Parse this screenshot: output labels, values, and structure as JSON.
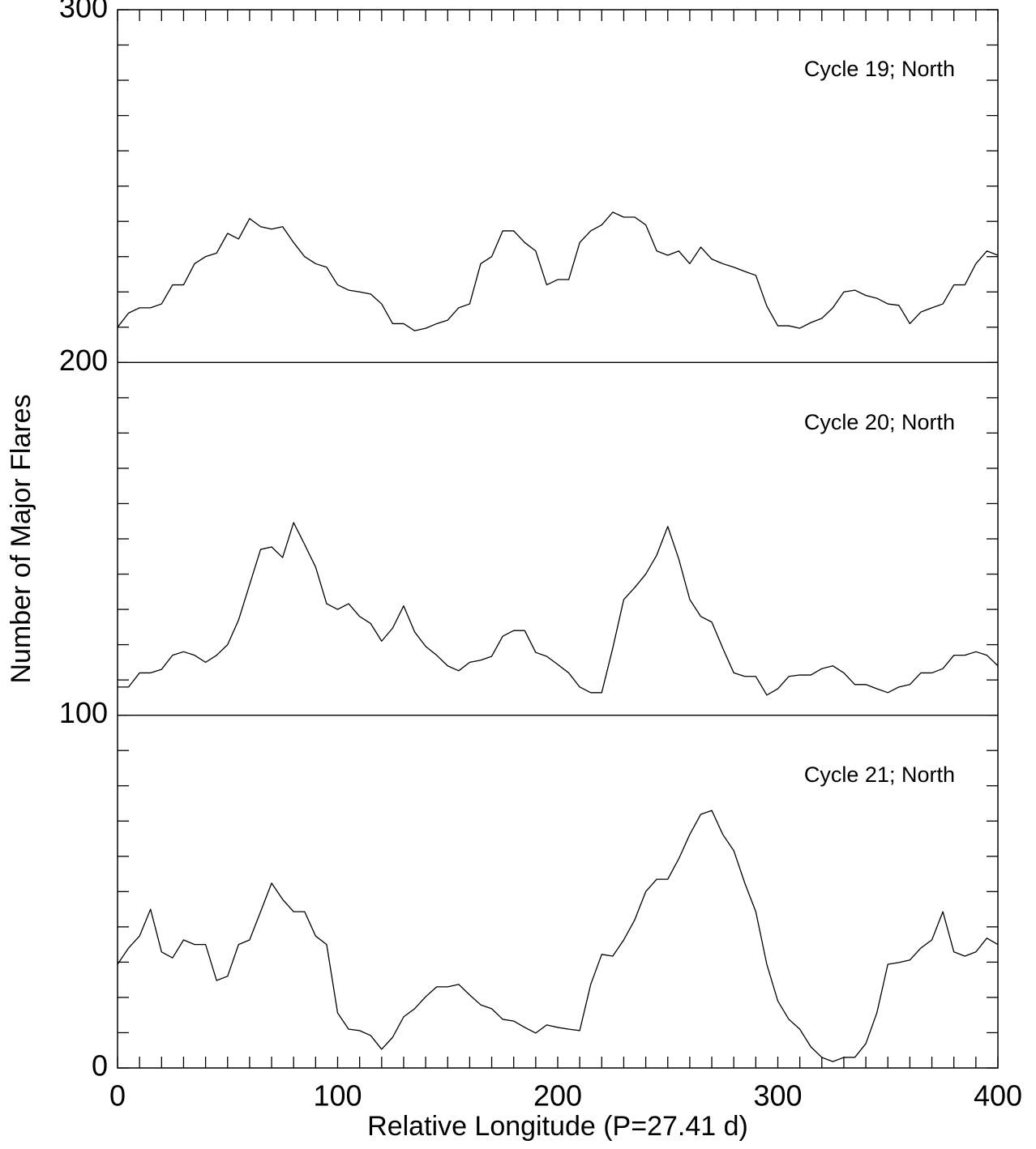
{
  "chart_data": {
    "type": "line",
    "x_label": "Relative Longitude (P=27.41 d)",
    "y_label": "Number of Major Flares",
    "x": [
      0,
      5,
      10,
      15,
      20,
      25,
      30,
      35,
      40,
      45,
      50,
      55,
      60,
      65,
      70,
      75,
      80,
      85,
      90,
      95,
      100,
      105,
      110,
      115,
      120,
      125,
      130,
      135,
      140,
      145,
      150,
      155,
      160,
      165,
      170,
      175,
      180,
      185,
      190,
      195,
      200,
      205,
      210,
      215,
      220,
      225,
      230,
      235,
      240,
      245,
      250,
      255,
      260,
      265,
      270,
      275,
      280,
      285,
      290,
      295,
      300,
      305,
      310,
      315,
      320,
      325,
      330,
      335,
      340,
      345,
      350,
      355,
      360,
      365,
      370,
      375,
      380,
      385,
      390,
      395,
      400
    ],
    "series": [
      {
        "name": "Cycle 19; North",
        "color": "#000000",
        "values": [
          210,
          214,
          215.5,
          215.5,
          216.6,
          222,
          222,
          228,
          230,
          231,
          236.6,
          235,
          240.8,
          238.5,
          237.8,
          238.5,
          234,
          230,
          228,
          227,
          222,
          220.5,
          220,
          219.4,
          216.6,
          211,
          211,
          209,
          209.7,
          211,
          212,
          215.5,
          216.6,
          228,
          230,
          237.3,
          237.3,
          234,
          231.6,
          222,
          223.5,
          223.5,
          234,
          237.3,
          239,
          242.6,
          241.2,
          241.2,
          239,
          231.6,
          230.4,
          231.6,
          228,
          232.7,
          229.3,
          228,
          227,
          225.8,
          224.7,
          216,
          210.4,
          210.4,
          209.7,
          211.3,
          212.5,
          215.5,
          220,
          220.5,
          219,
          218.2,
          216.6,
          216.2,
          211,
          214.3,
          215.5,
          216.6,
          222,
          222,
          228,
          231.6,
          230.4
        ]
      },
      {
        "name": "Cycle 20; North",
        "color": "#000000",
        "values": [
          108,
          108,
          112,
          112,
          113,
          117,
          118,
          117,
          115,
          117,
          120,
          127,
          137,
          147,
          147.7,
          144.7,
          154.6,
          148.4,
          142,
          131.6,
          130,
          131.6,
          128,
          126,
          121,
          124.7,
          131,
          123.6,
          119.5,
          117,
          114,
          112.6,
          115,
          115.6,
          116.7,
          122.4,
          124,
          124,
          117.8,
          116.7,
          114.4,
          112,
          108,
          106.4,
          106.4,
          119,
          132.8,
          136.2,
          140,
          145.4,
          153.5,
          144.3,
          132.8,
          128,
          126.4,
          119,
          112,
          111,
          111,
          105.7,
          107.5,
          111,
          111.4,
          111.4,
          113.2,
          114,
          112,
          108.7,
          108.7,
          107.5,
          106.4,
          108,
          108.7,
          112,
          112,
          113.2,
          117,
          117,
          118,
          117,
          114
        ]
      },
      {
        "name": "Cycle 21; North",
        "color": "#000000",
        "values": [
          29.4,
          34,
          37.4,
          45,
          32.9,
          31.2,
          36.3,
          35,
          35,
          24.8,
          26,
          35,
          36.3,
          44.3,
          52.4,
          47.8,
          44.3,
          44.3,
          37.4,
          35,
          15.6,
          11,
          10.6,
          9.2,
          5.3,
          8.7,
          14.5,
          16.8,
          20.2,
          23,
          23,
          23.7,
          20.7,
          17.9,
          16.8,
          13.8,
          13.3,
          11.5,
          9.9,
          12.2,
          11.5,
          11,
          10.6,
          23.7,
          32.2,
          31.7,
          36.3,
          42,
          50,
          53.5,
          53.5,
          59.3,
          66.2,
          71.9,
          73,
          66.2,
          61.6,
          52.4,
          44.3,
          29.4,
          19,
          13.8,
          11,
          6,
          3,
          1.8,
          3,
          3,
          6.9,
          15.6,
          29.4,
          29.9,
          30.6,
          34,
          36.3,
          44.3,
          32.9,
          31.7,
          32.9,
          36.8,
          35
        ]
      }
    ],
    "xlim": [
      0,
      400
    ],
    "xticks": [
      0,
      100,
      200,
      300,
      400
    ],
    "ylim": [
      0,
      300
    ],
    "yticks": [
      0,
      100,
      200,
      300
    ],
    "minor_subdivisions": 10,
    "panel_separators": true
  }
}
